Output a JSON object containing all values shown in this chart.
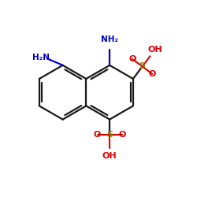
{
  "background": "#ffffff",
  "bond_color": "#1a1a1a",
  "bond_width": 1.6,
  "NH2_color": "#0000cc",
  "S_color": "#808000",
  "O_color": "#dd0000",
  "OH_color": "#dd0000",
  "figsize": [
    2.5,
    2.5
  ],
  "dpi": 100,
  "xlim": [
    -2.8,
    3.6
  ],
  "ylim": [
    -3.2,
    2.8
  ]
}
